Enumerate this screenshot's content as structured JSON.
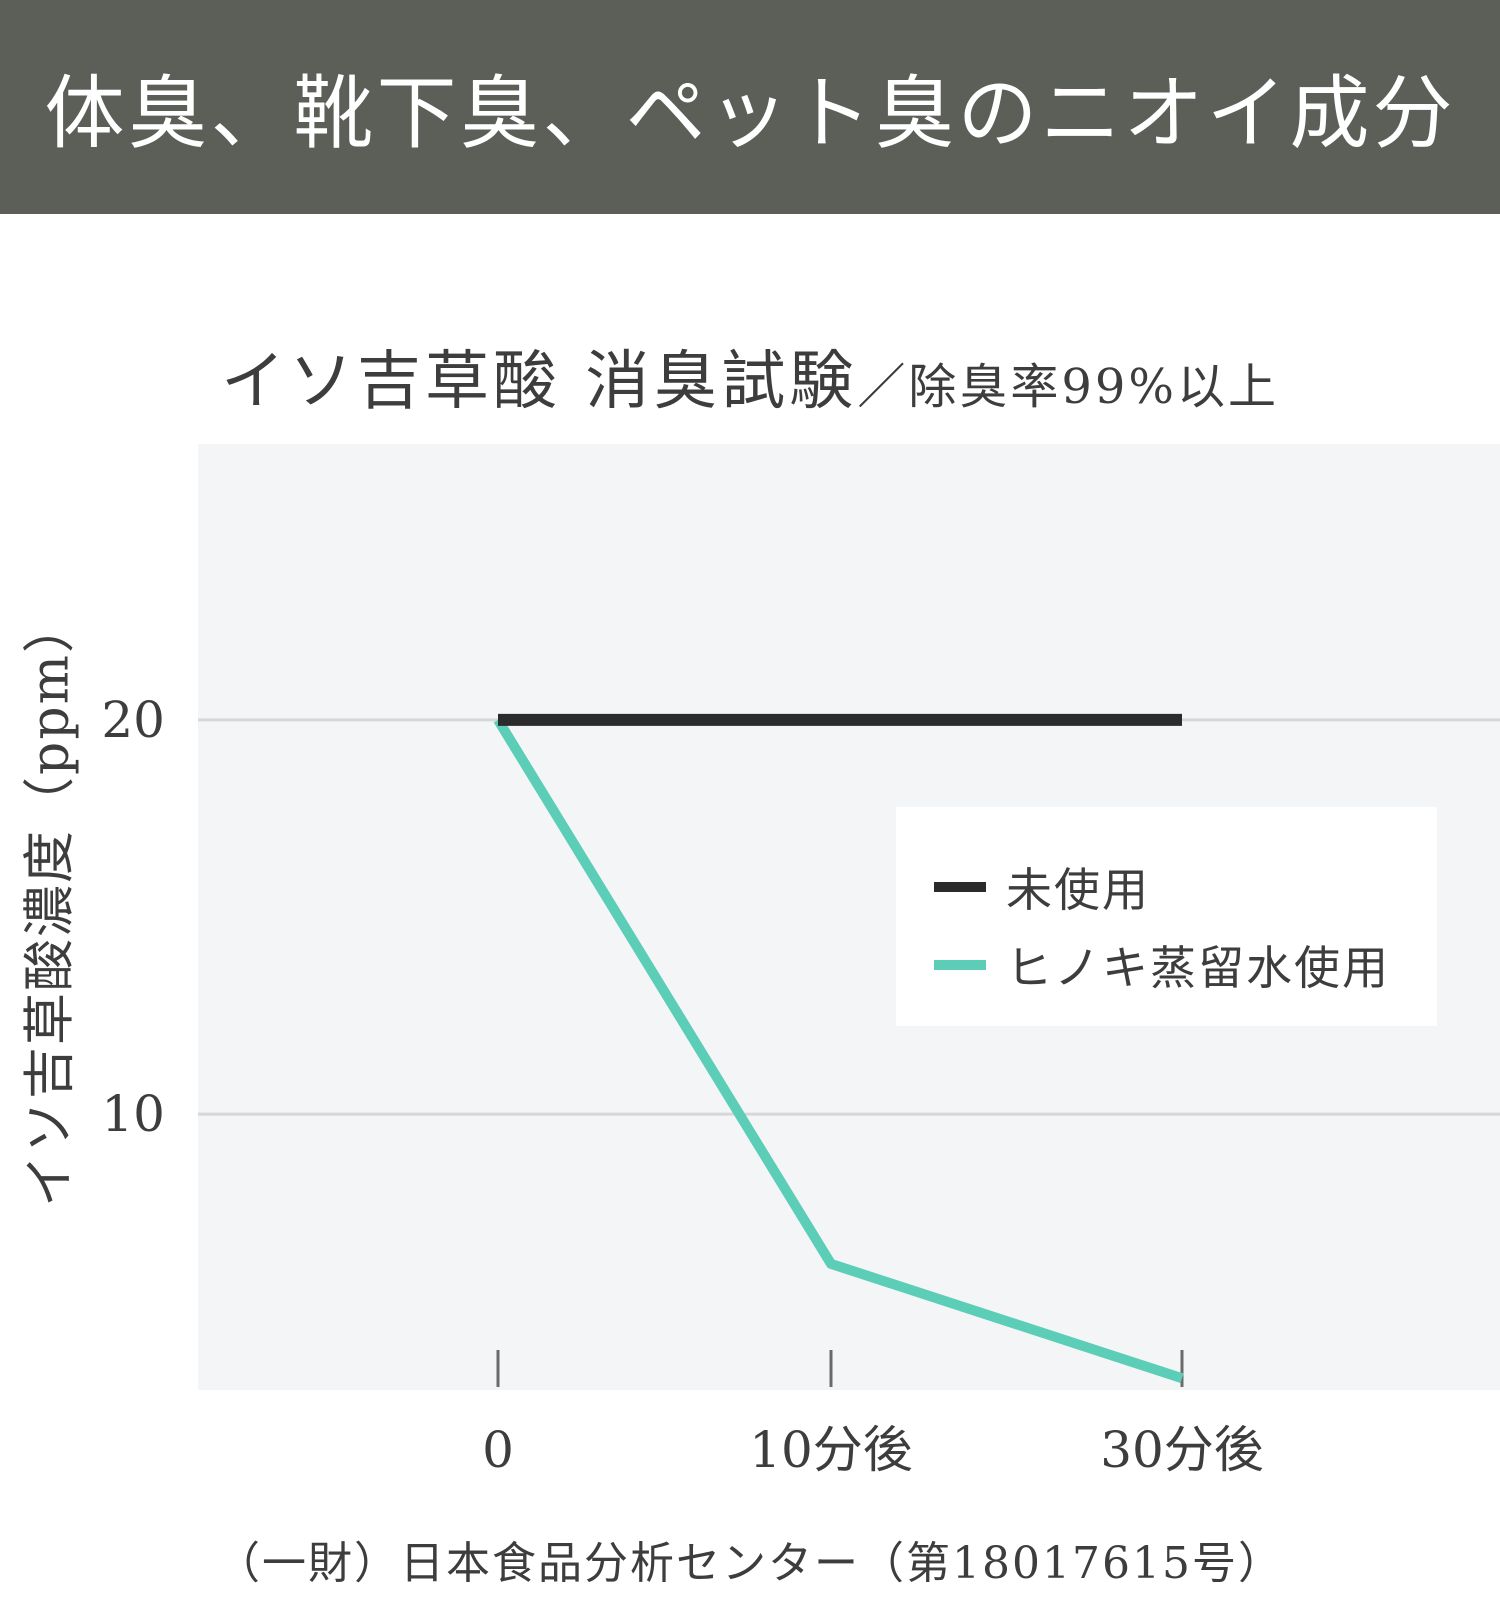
{
  "header": {
    "title": "体臭、靴下臭、ペット臭のニオイ成分"
  },
  "chart": {
    "title_main": "イソ吉草酸 消臭試験",
    "title_sub": "／除臭率99%以上"
  },
  "source": "（一財）日本食品分析センター（第18017615号）",
  "colors": {
    "banner": "#5c5f58",
    "series_untreated": "#2b2b2b",
    "series_hinoki": "#5ccdb7",
    "plot_background": "#f4f5f7"
  },
  "chart_data": {
    "type": "line",
    "title": "イソ吉草酸 消臭試験／除臭率99%以上",
    "xlabel": "",
    "ylabel": "イソ吉草酸濃度（ppm）",
    "categories": [
      "0",
      "10分後",
      "30分後"
    ],
    "yticks": [
      "10",
      "20"
    ],
    "ylim": [
      3,
      27
    ],
    "grid": true,
    "legend_position": "right",
    "series": [
      {
        "name": "未使用",
        "values": [
          20,
          20,
          20
        ],
        "color": "#2b2b2b"
      },
      {
        "name": "ヒノキ蒸留水使用",
        "values": [
          20,
          6.2,
          3.3
        ],
        "color": "#5ccdb7"
      }
    ]
  }
}
